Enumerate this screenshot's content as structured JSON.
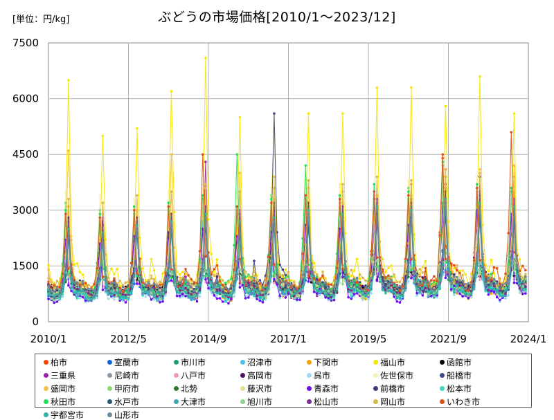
{
  "chart_data": {
    "type": "line",
    "title": "ぶどうの市場価格[2010/1～2023/12]",
    "unit_label": "[単位：円/kg]",
    "x_range": [
      "2010/1",
      "2024/1"
    ],
    "ylim": [
      0,
      7500
    ],
    "y_ticks": [
      "0",
      "1500",
      "3000",
      "4500",
      "6000",
      "7500"
    ],
    "x_ticks": [
      "2010/1",
      "2012/5",
      "2014/9",
      "2017/1",
      "2019/5",
      "2021/9",
      "2024/1"
    ],
    "grid": true,
    "legend_position": "bottom",
    "series": [
      {
        "name": "柏市",
        "color": "#ff4500",
        "seasonal_peaks": [
          2900,
          2700,
          2600,
          2600,
          3200,
          2500,
          2900,
          2800,
          3100,
          3600,
          3000,
          4400,
          3600,
          3400
        ]
      },
      {
        "name": "室蘭市",
        "color": "#1565e0",
        "seasonal_peaks": [
          2700,
          2500,
          2400,
          2600,
          2900,
          2400,
          2800,
          2600,
          2800,
          3100,
          2800,
          3600,
          3000,
          2900
        ]
      },
      {
        "name": "市川市",
        "color": "#14a36c",
        "seasonal_peaks": [
          2500,
          2300,
          2500,
          2700,
          2800,
          2600,
          3100,
          2900,
          2700,
          3200,
          2700,
          3000,
          3300,
          3100
        ]
      },
      {
        "name": "沼津市",
        "color": "#4dc3f0",
        "seasonal_peaks": [
          2300,
          2200,
          2400,
          2500,
          2700,
          2500,
          2800,
          3000,
          2700,
          2800,
          2900,
          3200,
          3000,
          2900
        ]
      },
      {
        "name": "下関市",
        "color": "#f0a500",
        "seasonal_peaks": [
          3100,
          2900,
          2800,
          2900,
          3300,
          3000,
          3300,
          3100,
          3200,
          3000,
          3400,
          3300,
          3200,
          3500
        ]
      },
      {
        "name": "福山市",
        "color": "#f7e600",
        "seasonal_peaks": [
          6500,
          5000,
          5200,
          6200,
          7100,
          5500,
          5600,
          5600,
          5600,
          6300,
          6300,
          5800,
          6600,
          5600
        ]
      },
      {
        "name": "函館市",
        "color": "#000000",
        "seasonal_peaks": [
          2200,
          2100,
          2300,
          2400,
          2500,
          2300,
          2100,
          2500,
          2400,
          2600,
          2500,
          2700,
          2600,
          2500
        ]
      },
      {
        "name": "三重県",
        "color": "#a020b0",
        "seasonal_peaks": [
          2600,
          2800,
          2700,
          2900,
          4300,
          3000,
          2800,
          3000,
          3100,
          3000,
          3300,
          3700,
          3500,
          3000
        ]
      },
      {
        "name": "尼崎市",
        "color": "#8a97a6",
        "seasonal_peaks": [
          2400,
          2300,
          2500,
          2600,
          2800,
          2500,
          2700,
          2800,
          2600,
          2900,
          3100,
          3200,
          3100,
          3000
        ]
      },
      {
        "name": "八戸市",
        "color": "#f598c0",
        "seasonal_peaks": [
          2000,
          1900,
          2100,
          2200,
          2400,
          2200,
          2300,
          2500,
          2400,
          2600,
          2500,
          2800,
          2700,
          2600
        ]
      },
      {
        "name": "高岡市",
        "color": "#4b1060",
        "seasonal_peaks": [
          2800,
          2700,
          2600,
          2900,
          3100,
          2800,
          3200,
          3000,
          3100,
          3400,
          3700,
          3900,
          3900,
          3300
        ]
      },
      {
        "name": "呉市",
        "color": "#9fdcf5",
        "seasonal_peaks": [
          2100,
          2000,
          2200,
          2300,
          2500,
          2300,
          2400,
          2600,
          2500,
          2700,
          2600,
          2900,
          2800,
          2700
        ]
      },
      {
        "name": "佐世保市",
        "color": "#f7f0b0",
        "seasonal_peaks": [
          3500,
          3400,
          3300,
          3500,
          3700,
          3500,
          3600,
          3800,
          3700,
          3600,
          3800,
          4000,
          3900,
          3700
        ]
      },
      {
        "name": "船橋市",
        "color": "#3b4a8c",
        "seasonal_peaks": [
          2300,
          2200,
          2400,
          2500,
          2600,
          2400,
          5600,
          2600,
          2500,
          2700,
          2800,
          2900,
          2800,
          2700
        ]
      },
      {
        "name": "盛岡市",
        "color": "#f5c242",
        "seasonal_peaks": [
          4600,
          3200,
          3000,
          4500,
          3600,
          4000,
          3900,
          3600,
          3500,
          3400,
          3700,
          3900,
          4100,
          4200
        ]
      },
      {
        "name": "甲府市",
        "color": "#8fd96b",
        "seasonal_peaks": [
          3200,
          3000,
          2900,
          3100,
          3300,
          3100,
          3400,
          3300,
          3200,
          3500,
          3600,
          4200,
          3600,
          3500
        ]
      },
      {
        "name": "北勢",
        "color": "#2e7d32",
        "seasonal_peaks": [
          2500,
          2400,
          2600,
          2700,
          2900,
          2700,
          2800,
          3000,
          2900,
          3100,
          3000,
          3300,
          3200,
          3100
        ]
      },
      {
        "name": "藤沢市",
        "color": "#e4e08a",
        "seasonal_peaks": [
          2700,
          2600,
          2800,
          2900,
          3100,
          2900,
          3000,
          3200,
          3100,
          3300,
          3200,
          3500,
          3400,
          3300
        ]
      },
      {
        "name": "青森市",
        "color": "#6a0ef0",
        "seasonal_peaks": [
          2200,
          2100,
          2300,
          2400,
          2500,
          2300,
          2400,
          2600,
          2500,
          3300,
          2600,
          3200,
          3000,
          2900
        ]
      },
      {
        "name": "前橋市",
        "color": "#4a3a7a",
        "seasonal_peaks": [
          2400,
          2300,
          2500,
          2600,
          2700,
          2500,
          2600,
          2800,
          2700,
          2900,
          2800,
          3100,
          3000,
          2900
        ]
      },
      {
        "name": "松本市",
        "color": "#3ed6c3",
        "seasonal_peaks": [
          2600,
          2500,
          2700,
          2800,
          3000,
          2800,
          2900,
          3100,
          3000,
          3200,
          3100,
          3400,
          3300,
          3200
        ]
      },
      {
        "name": "秋田市",
        "color": "#22e05a",
        "seasonal_peaks": [
          3000,
          2900,
          3100,
          3200,
          3400,
          4500,
          3300,
          4200,
          3400,
          3700,
          3500,
          4300,
          3700,
          3600
        ]
      },
      {
        "name": "水戸市",
        "color": "#2b5c7c",
        "seasonal_peaks": [
          2300,
          2200,
          2400,
          2500,
          2700,
          2500,
          2600,
          2800,
          2700,
          2900,
          2800,
          3100,
          3000,
          2900
        ]
      },
      {
        "name": "大津市",
        "color": "#3aa8b8",
        "seasonal_peaks": [
          2400,
          2300,
          2500,
          2600,
          2800,
          2600,
          2700,
          2900,
          2800,
          3000,
          2900,
          3200,
          3100,
          3000
        ]
      },
      {
        "name": "旭川市",
        "color": "#8ed38e",
        "seasonal_peaks": [
          2800,
          2700,
          2900,
          3000,
          3200,
          3000,
          3100,
          3300,
          3200,
          3400,
          3300,
          3600,
          3500,
          3400
        ]
      },
      {
        "name": "松山市",
        "color": "#7b2b8c",
        "seasonal_peaks": [
          2700,
          2600,
          2800,
          2900,
          3100,
          2900,
          3000,
          3200,
          3100,
          3300,
          3200,
          3500,
          3400,
          3300
        ]
      },
      {
        "name": "岡山市",
        "color": "#d9b84a",
        "seasonal_peaks": [
          3300,
          3200,
          3400,
          3500,
          3700,
          3500,
          3600,
          3800,
          3700,
          3900,
          3800,
          4100,
          4000,
          3900
        ]
      },
      {
        "name": "いわき市",
        "color": "#e0521a",
        "seasonal_peaks": [
          2900,
          2800,
          3000,
          3100,
          4500,
          3100,
          3200,
          3400,
          3300,
          3500,
          3400,
          4500,
          3600,
          5100
        ]
      },
      {
        "name": "宇都宮市",
        "color": "#2bb5a5",
        "seasonal_peaks": [
          2500,
          2400,
          2600,
          2700,
          2900,
          2700,
          2800,
          3000,
          2900,
          3100,
          3000,
          3300,
          3200,
          3100
        ]
      },
      {
        "name": "山形市",
        "color": "#6a8a99",
        "seasonal_peaks": [
          2400,
          2300,
          2500,
          2600,
          2800,
          2600,
          2700,
          2900,
          2800,
          3000,
          2900,
          3200,
          3100,
          3000
        ]
      }
    ]
  }
}
